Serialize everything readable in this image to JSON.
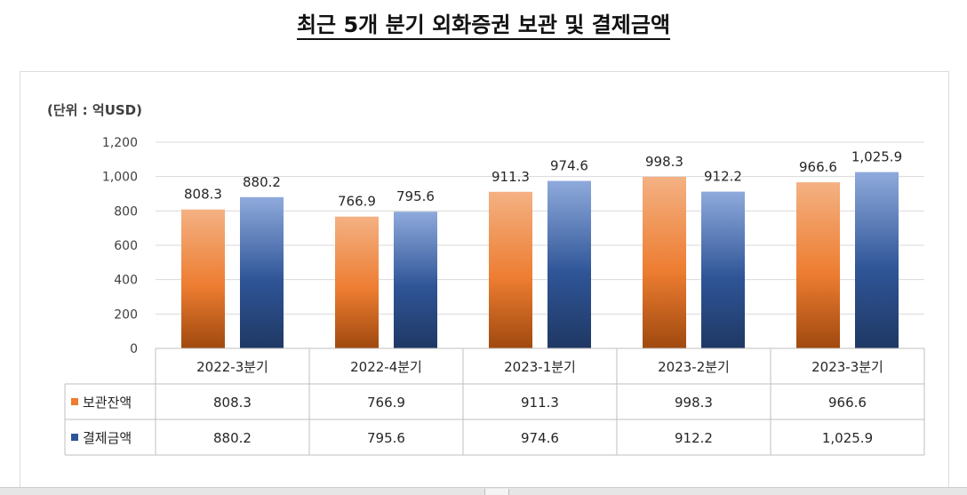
{
  "page_title": "최근 5개 분기 외화증권 보관 및 결제금액",
  "chart_data": {
    "type": "bar",
    "unit_label": "(단위 : 억USD)",
    "categories": [
      "2022-3분기",
      "2022-4분기",
      "2023-1분기",
      "2023-2분기",
      "2023-3분기"
    ],
    "series": [
      {
        "name": "보관잔액",
        "values": [
          808.3,
          766.9,
          911.3,
          998.3,
          966.6
        ],
        "labels": [
          "808.3",
          "766.9",
          "911.3",
          "998.3",
          "966.6"
        ],
        "color": "#ED7D31",
        "color_light": "#F4B183"
      },
      {
        "name": "결제금액",
        "values": [
          880.2,
          795.6,
          974.6,
          912.2,
          1025.9
        ],
        "labels": [
          "880.2",
          "795.6",
          "974.6",
          "912.2",
          "1,025.9"
        ],
        "color": "#2F5597",
        "color_light": "#8FAADC"
      }
    ],
    "ylim": [
      0,
      1200
    ],
    "yticks": [
      0,
      200,
      400,
      600,
      800,
      1000,
      1200
    ],
    "ytick_labels": [
      "0",
      "200",
      "400",
      "600",
      "800",
      "1,000",
      "1,200"
    ],
    "grid": true,
    "legend": "data-table"
  }
}
